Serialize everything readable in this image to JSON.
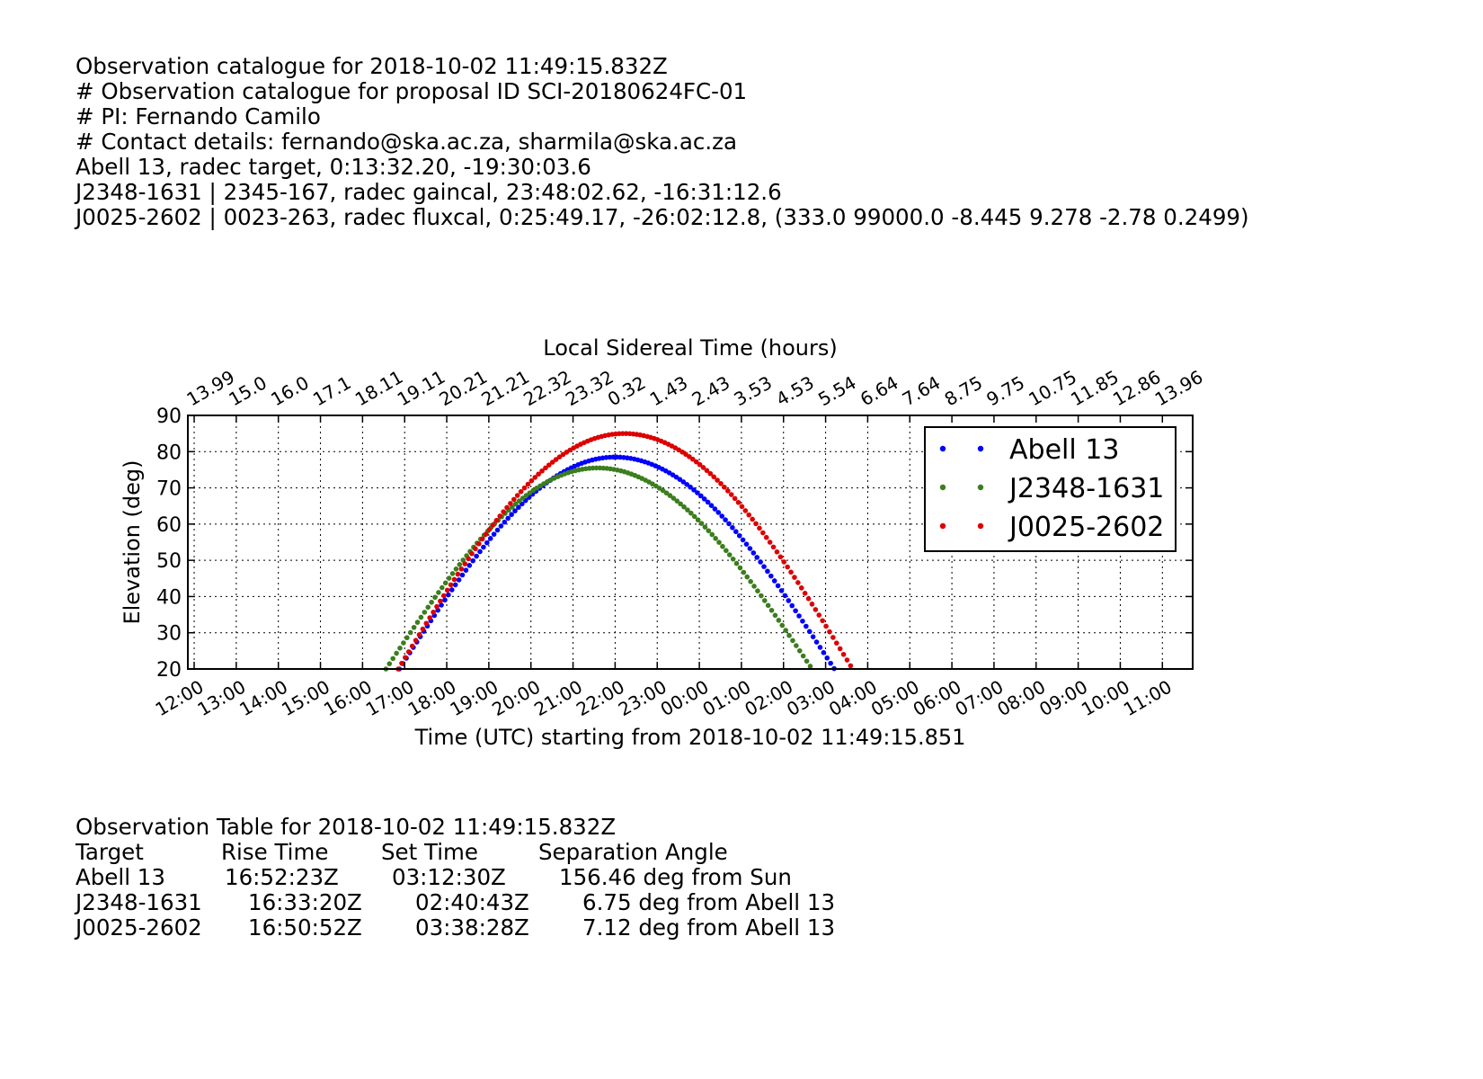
{
  "header": {
    "lines": [
      "Observation catalogue for 2018-10-02 11:49:15.832Z",
      "# Observation catalogue for proposal ID SCI-20180624FC-01",
      "# PI: Fernando Camilo",
      "# Contact details: fernando@ska.ac.za, sharmila@ska.ac.za",
      "Abell 13, radec target, 0:13:32.20, -19:30:03.6",
      "J2348-1631 | 2345-167, radec gaincal, 23:48:02.62, -16:31:12.6",
      "J0025-2602 | 0023-263, radec fluxcal, 0:25:49.17, -26:02:12.8, (333.0 99000.0 -8.445 9.278 -2.78 0.2499)"
    ]
  },
  "chart_data": {
    "type": "scatter",
    "title": "Local Sidereal Time (hours)",
    "xlabel": "Time (UTC) starting from 2018-10-02 11:49:15.851",
    "ylabel": "Elevation (deg)",
    "ylim": [
      20,
      90
    ],
    "yticks": [
      20,
      30,
      40,
      50,
      60,
      70,
      80,
      90
    ],
    "xlim_hours": [
      -0.15,
      23.72
    ],
    "x_tick_labels": [
      "12:00",
      "13:00",
      "14:00",
      "15:00",
      "16:00",
      "17:00",
      "18:00",
      "19:00",
      "20:00",
      "21:00",
      "22:00",
      "23:00",
      "00:00",
      "01:00",
      "02:00",
      "03:00",
      "04:00",
      "05:00",
      "06:00",
      "07:00",
      "08:00",
      "09:00",
      "10:00",
      "11:00"
    ],
    "lst_tick_labels": [
      "13.99",
      "15.0",
      "16.0",
      "17.1",
      "18.11",
      "19.11",
      "20.21",
      "21.21",
      "22.32",
      "23.32",
      "0.32",
      "1.43",
      "2.43",
      "3.53",
      "4.53",
      "5.54",
      "6.64",
      "7.64",
      "8.75",
      "9.75",
      "10.75",
      "11.85",
      "12.86",
      "13.96"
    ],
    "grid": true,
    "legend_position": "top-right",
    "series": [
      {
        "name": "Abell 13",
        "color": "#0000ff",
        "rise": "16:52:23",
        "peak_time": "22:00",
        "peak_elevation": 78.5,
        "set": "03:12:30"
      },
      {
        "name": "J2348-1631",
        "color": "#3c7d1e",
        "rise": "16:33:20",
        "peak_time": "21:35",
        "peak_elevation": 75.5,
        "set": "02:40:43"
      },
      {
        "name": "J0025-2602",
        "color": "#dd0000",
        "rise": "16:50:52",
        "peak_time": "22:13",
        "peak_elevation": 85.0,
        "set": "03:38:28"
      }
    ]
  },
  "table": {
    "title": "Observation Table for 2018-10-02 11:49:15.832Z",
    "headers": [
      "Target",
      "Rise Time",
      "Set Time",
      "Separation Angle"
    ],
    "rows": [
      [
        "Abell 13",
        "16:52:23Z",
        "03:12:30Z",
        "156.46 deg from Sun"
      ],
      [
        "J2348-1631",
        "16:33:20Z",
        "02:40:43Z",
        "6.75 deg from Abell 13"
      ],
      [
        "J0025-2602",
        "16:50:52Z",
        "03:38:28Z",
        "7.12 deg from Abell 13"
      ]
    ]
  }
}
